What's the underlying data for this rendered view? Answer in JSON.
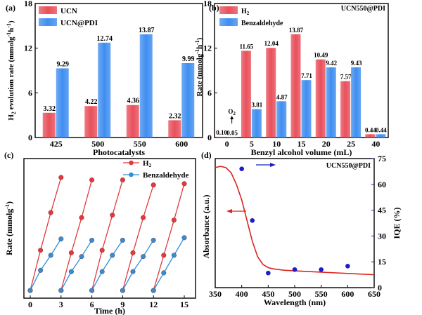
{
  "chart_data": [
    {
      "panel": "(a)",
      "type": "bar",
      "xlabel": "Photocatalysts",
      "ylabel_main": "H",
      "ylabel_sub": "2",
      "ylabel_rest": " evolution rate (mmolg",
      "ylabel_sup": "-1",
      "ylabel_h": "h",
      "ylim": [
        0,
        18
      ],
      "yticks": [
        "0",
        "6",
        "12",
        "18"
      ],
      "categories": [
        "425",
        "500",
        "550",
        "600"
      ],
      "series": [
        {
          "name": "UCN",
          "color": "#e8505b",
          "values": [
            3.32,
            4.22,
            4.36,
            2.32
          ],
          "labels": [
            "3.32",
            "4.22",
            "4.36",
            "2.32"
          ]
        },
        {
          "name": "UCN@PDI",
          "color": "#3f8ef0",
          "values": [
            9.29,
            12.74,
            13.87,
            9.99
          ],
          "labels": [
            "9.29",
            "12.74",
            "13.87",
            "9.99"
          ]
        }
      ]
    },
    {
      "panel": "(b)",
      "type": "bar",
      "annotation": "UCN550@PDI",
      "xlabel": "Benzyl alcohol volume (mL)",
      "ylabel": "Rate (mmolg",
      "ylim": [
        0,
        18
      ],
      "yticks": [
        "0",
        "6",
        "12",
        "18"
      ],
      "categories": [
        "0",
        "5",
        "10",
        "15",
        "20",
        "25",
        "40"
      ],
      "o2_label": "O",
      "o2_sub": "2",
      "series": [
        {
          "name": "H2",
          "legend_main": "H",
          "legend_sub": "2",
          "color": "#e8505b",
          "values": [
            0.1,
            11.65,
            12.04,
            13.87,
            10.49,
            7.57,
            0.44
          ],
          "labels": [
            "0.10",
            "11.65",
            "12.04",
            "13.87",
            "10.49",
            "7.57",
            "0.44"
          ]
        },
        {
          "name": "Benzaldehyde",
          "color": "#3f8ef0",
          "values": [
            0.05,
            3.81,
            4.87,
            7.71,
            9.42,
            9.43,
            0.44
          ],
          "labels": [
            "0.05",
            "3.81",
            "4.87",
            "7.71",
            "9.42",
            "9.43",
            "0.44"
          ]
        }
      ]
    },
    {
      "panel": "(c)",
      "type": "line",
      "xlabel": "Time (h)",
      "ylabel": "Rate (mmolg",
      "xticks": [
        "0",
        "3",
        "6",
        "9",
        "12",
        "15"
      ],
      "xlim": [
        0,
        15
      ],
      "ylim": [
        0,
        50
      ],
      "cycles": 5,
      "cycle_x": [
        0,
        1,
        2,
        3
      ],
      "series": [
        {
          "name": "H2",
          "legend_main": "H",
          "legend_sub": "2",
          "color": "#e0393e",
          "cycles": [
            [
              0,
              16,
              31,
              45
            ],
            [
              0,
              15,
              29,
              44
            ],
            [
              0,
              16,
              30,
              44
            ],
            [
              0,
              15,
              29,
              42
            ],
            [
              0,
              14,
              28,
              42.5
            ]
          ]
        },
        {
          "name": "Benzaldehyde",
          "color": "#2f8fd8",
          "cycles": [
            [
              0,
              8,
              14,
              20.5
            ],
            [
              0,
              7.5,
              13.5,
              20
            ],
            [
              0,
              7.5,
              14,
              20
            ],
            [
              0,
              7.5,
              13.5,
              20
            ],
            [
              0,
              7,
              14,
              21
            ]
          ]
        }
      ]
    },
    {
      "panel": "(d)",
      "type": "line+scatter",
      "annotation": "UCN550@PDI",
      "xlabel": "Wavelength (nm)",
      "ylabel_left": "Absorbance (a.u.)",
      "ylabel_right": "IQE (%)",
      "xlim": [
        350,
        650
      ],
      "xticks": [
        "350",
        "400",
        "450",
        "500",
        "550",
        "600",
        "650"
      ],
      "ylim_right": [
        0,
        75
      ],
      "yticks_right": [
        "0",
        "15",
        "30",
        "45",
        "60",
        "75"
      ],
      "absorbance_color": "#d9261c",
      "iqe_color": "#1c1cc8",
      "absorbance": {
        "x": [
          350,
          360,
          370,
          380,
          390,
          400,
          410,
          420,
          430,
          440,
          450,
          460,
          480,
          500,
          550,
          600,
          650
        ],
        "y": [
          0.93,
          0.94,
          0.93,
          0.89,
          0.8,
          0.68,
          0.52,
          0.36,
          0.24,
          0.18,
          0.155,
          0.145,
          0.135,
          0.13,
          0.12,
          0.11,
          0.1
        ]
      },
      "iqe": {
        "x": [
          400,
          420,
          450,
          500,
          550,
          600
        ],
        "y": [
          69,
          39,
          8.5,
          10.5,
          10.5,
          12.5
        ]
      }
    }
  ]
}
